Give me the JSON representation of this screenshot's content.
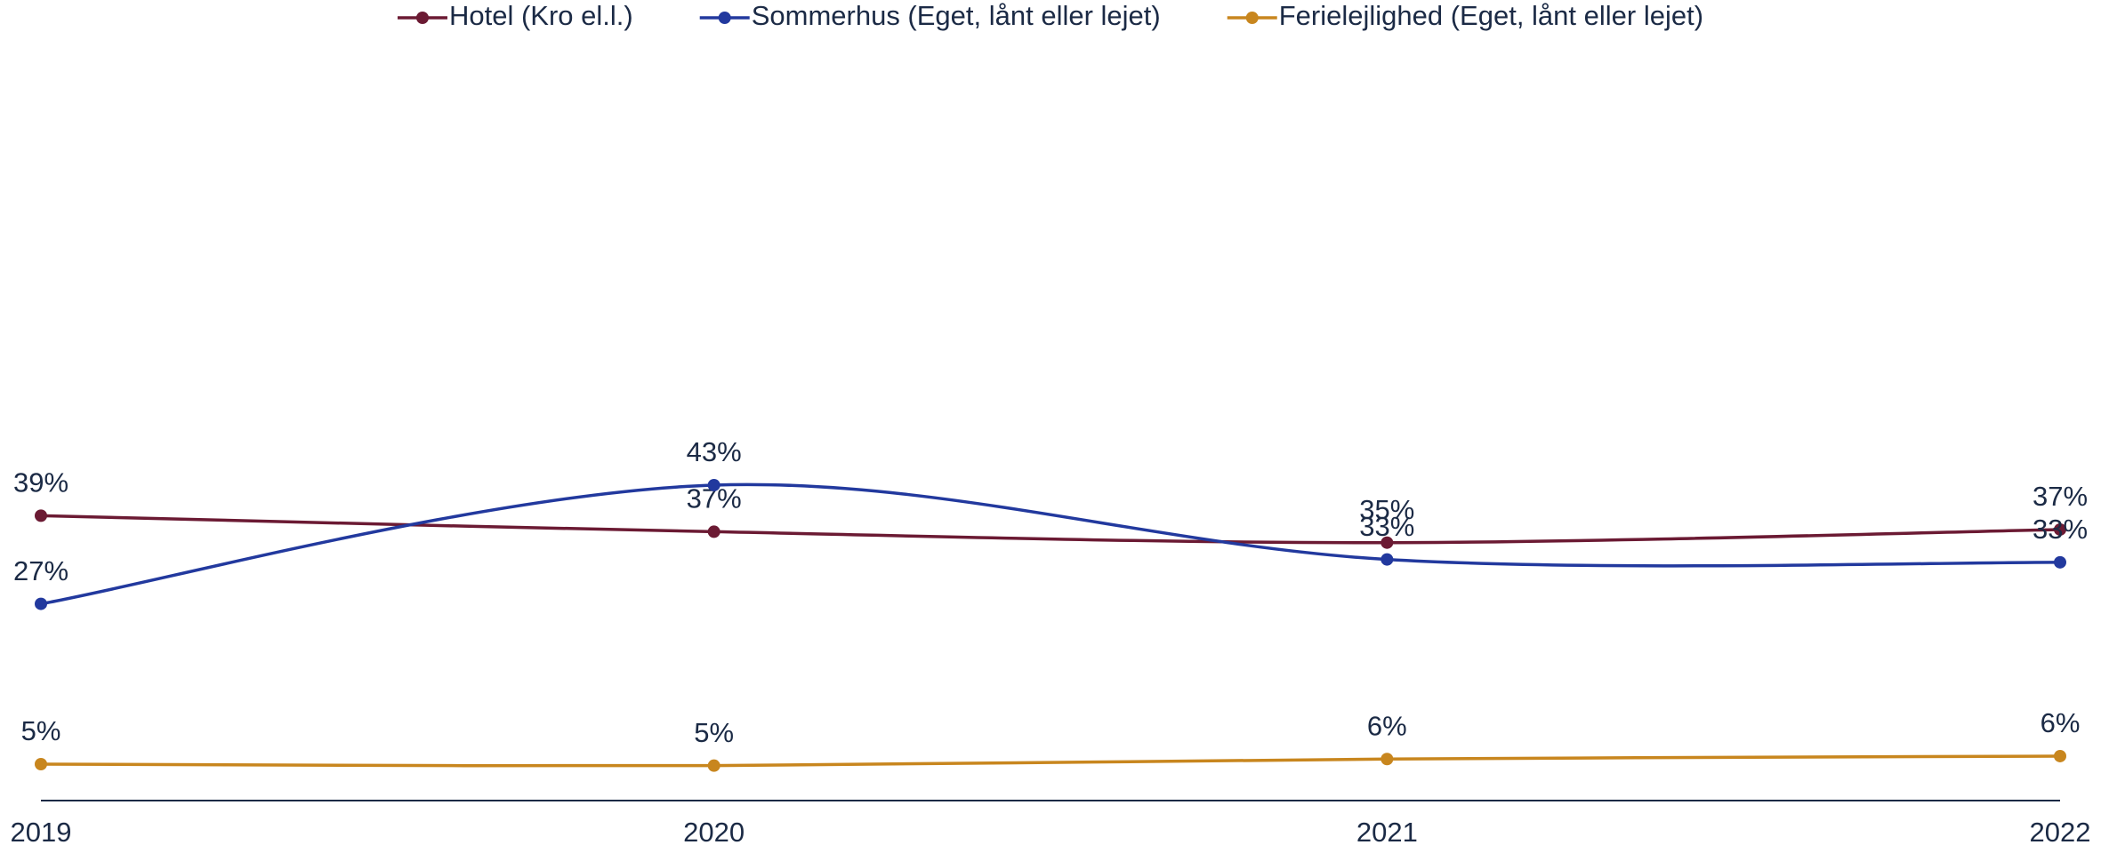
{
  "chart_data": {
    "type": "line",
    "categories": [
      "2019",
      "2020",
      "2021",
      "2022"
    ],
    "series": [
      {
        "name": "Hotel (Kro el.l.)",
        "color": "#6b1a33",
        "values": [
          39.1,
          36.9,
          35.4,
          37.2
        ],
        "value_labels": [
          "39%",
          "37%",
          "35%",
          "37%"
        ]
      },
      {
        "name": "Sommerhus (Eget, lånt eller lejet)",
        "color": "#22399e",
        "values": [
          27.0,
          43.3,
          33.1,
          32.7
        ],
        "value_labels": [
          "27%",
          "43%",
          "33%",
          "33%"
        ]
      },
      {
        "name": "Ferielejlighed (Eget, lånt eller lejet)",
        "color": "#c8861e",
        "values": [
          5.0,
          4.8,
          5.7,
          6.1
        ],
        "value_labels": [
          "5%",
          "5%",
          "6%",
          "6%"
        ]
      }
    ],
    "ylim": [
      0,
      100
    ],
    "grid": false,
    "legend": "top",
    "smooth": true
  }
}
